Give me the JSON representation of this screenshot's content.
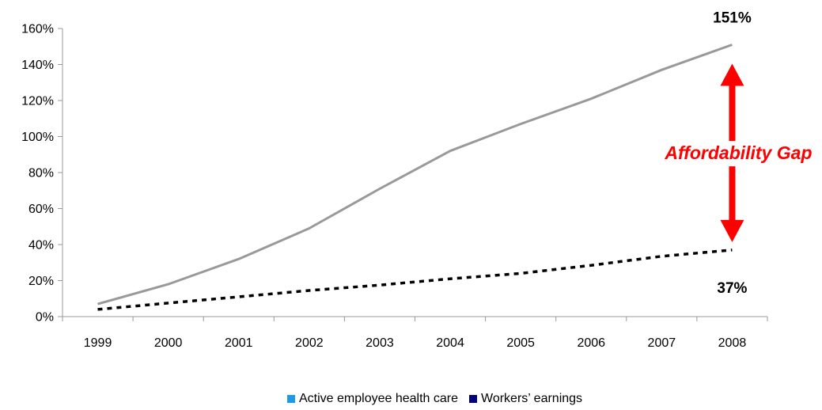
{
  "chart_data": {
    "type": "line",
    "title": "",
    "xlabel": "",
    "ylabel": "",
    "x": [
      "1999",
      "2000",
      "2001",
      "2002",
      "2003",
      "2004",
      "2005",
      "2006",
      "2007",
      "2008"
    ],
    "y_ticks": [
      "0%",
      "20%",
      "40%",
      "60%",
      "80%",
      "100%",
      "120%",
      "140%",
      "160%"
    ],
    "ylim": [
      0,
      160
    ],
    "grid": false,
    "legend_position": "bottom",
    "series": [
      {
        "name": "Active employee health care",
        "values": [
          7,
          18,
          32,
          49,
          71,
          92,
          107,
          121,
          137,
          151
        ],
        "line_color": "#999999",
        "legend_color": "#1e9be8",
        "dashed": false
      },
      {
        "name": "Workers’ earnings",
        "values": [
          4,
          7.5,
          11,
          14.5,
          17.5,
          21,
          24,
          28.5,
          33.5,
          37
        ],
        "line_color": "#000000",
        "legend_color": "#000080",
        "dashed": true
      }
    ],
    "annotations": {
      "top_value": "151%",
      "bottom_value": "37%",
      "gap_label": "Affordability Gap",
      "gap_color": "#ff0000"
    }
  }
}
